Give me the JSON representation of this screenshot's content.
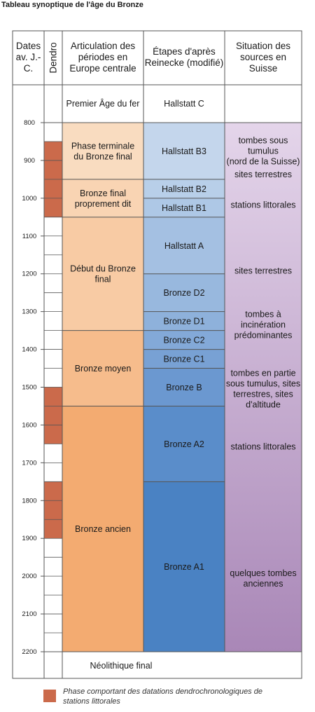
{
  "title": "Tableau synoptique de l'âge du Bronze",
  "headers": {
    "dates": "Dates av. J.-C.",
    "dendro": "Dendro",
    "periods": "Articulation des périodes en Europe centrale",
    "reinecke": "Étapes d'après Reinecke (modifié)",
    "sources": "Situation des sources en Suisse"
  },
  "top_row": {
    "period": "Premier Âge du fer",
    "reinecke": "Hallstatt C"
  },
  "bottom_row": {
    "period": "Néolithique final"
  },
  "scale": {
    "start": 800,
    "end": 2200,
    "step": 100
  },
  "dendro_phases": [
    {
      "from": 850,
      "to": 1050
    },
    {
      "from": 1500,
      "to": 1650
    },
    {
      "from": 1750,
      "to": 1900
    }
  ],
  "periods": [
    {
      "label": "Phase terminale du Bronze final",
      "from": 800,
      "to": 950,
      "color": "#f9dcc0"
    },
    {
      "label": "Bronze final proprement dit",
      "from": 950,
      "to": 1050,
      "color": "#f9d4b3"
    },
    {
      "label": "Début du Bronze final",
      "from": 1050,
      "to": 1350,
      "color": "#f8cba4"
    },
    {
      "label": "Bronze moyen",
      "from": 1350,
      "to": 1550,
      "color": "#f6bc8c"
    },
    {
      "label": "Bronze ancien",
      "from": 1550,
      "to": 2200,
      "color": "#f3ab71"
    }
  ],
  "reinecke_stages": [
    {
      "label": "Hallstatt B3",
      "from": 800,
      "to": 950,
      "color": "#c4d6ec"
    },
    {
      "label": "Hallstatt B2",
      "from": 950,
      "to": 1000,
      "color": "#b8cfe9"
    },
    {
      "label": "Hallstatt B1",
      "from": 1000,
      "to": 1050,
      "color": "#aec8e6"
    },
    {
      "label": "Hallstatt A",
      "from": 1050,
      "to": 1200,
      "color": "#a4c0e2"
    },
    {
      "label": "Bronze D2",
      "from": 1200,
      "to": 1300,
      "color": "#98b8de"
    },
    {
      "label": "Bronze D1",
      "from": 1300,
      "to": 1350,
      "color": "#8eb1db"
    },
    {
      "label": "Bronze C2",
      "from": 1350,
      "to": 1400,
      "color": "#83a9d8"
    },
    {
      "label": "Bronze C1",
      "from": 1400,
      "to": 1450,
      "color": "#78a1d4"
    },
    {
      "label": "Bronze B",
      "from": 1450,
      "to": 1550,
      "color": "#6b98d0"
    },
    {
      "label": "Bronze A2",
      "from": 1550,
      "to": 1750,
      "color": "#5a8dca"
    },
    {
      "label": "Bronze A1",
      "from": 1750,
      "to": 2200,
      "color": "#4a82c3"
    }
  ],
  "source_labels": [
    {
      "lines": [
        "tombes sous",
        "tumulus",
        "(nord de la Suisse)"
      ],
      "at": 855
    },
    {
      "lines": [
        "sites terrestres"
      ],
      "at": 945
    },
    {
      "lines": [
        "stations littorales"
      ],
      "at": 1025
    },
    {
      "lines": [
        "sites terrestres"
      ],
      "at": 1200
    },
    {
      "lines": [
        "tombes à",
        "incinération",
        "prédominantes"
      ],
      "at": 1315
    },
    {
      "lines": [
        "tombes en partie",
        "sous tumulus, sites",
        "terrestres, sites",
        "d'altitude"
      ],
      "at": 1470
    },
    {
      "lines": [
        "stations littorales"
      ],
      "at": 1665
    },
    {
      "lines": [
        "quelques tombes",
        "anciennes"
      ],
      "at": 2000
    }
  ],
  "legend": "Phase comportant des datations dendrochronologiques de stations littorales",
  "colors": {
    "dendro": "#cb6a4b",
    "sources_top": "#e4d5ea",
    "sources_bottom": "#a987b7",
    "frame": "#555555"
  }
}
